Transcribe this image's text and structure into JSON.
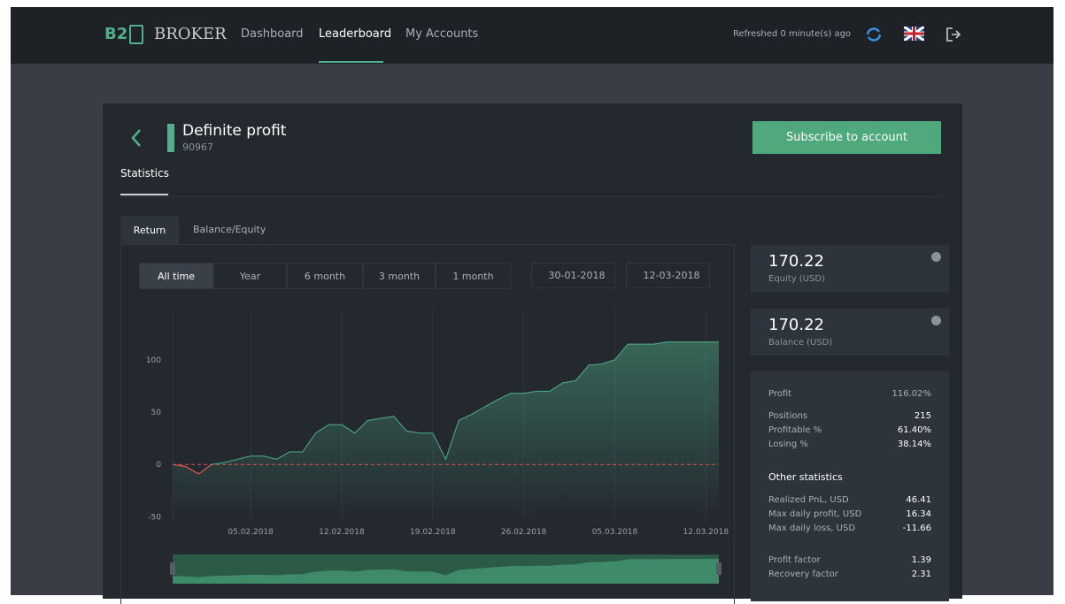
{
  "header": {
    "logo": "B2",
    "brand": "BROKER",
    "nav": [
      "Dashboard",
      "Leaderboard",
      "My Accounts"
    ],
    "refreshed": "Refreshed 0 minute(s) ago"
  },
  "account": {
    "name": "Definite profit",
    "id": "90967",
    "subscribe": "Subscribe to account",
    "tab": "Statistics",
    "subtabs": [
      "Return",
      "Balance/Equity"
    ],
    "ranges": [
      "All time",
      "Year",
      "6 month",
      "3 month",
      "1 month"
    ],
    "date_from": "30-01-2018",
    "date_to": "12-03-2018"
  },
  "cards": [
    {
      "value": "170.22",
      "label": "Equity (USD)"
    },
    {
      "value": "170.22",
      "label": "Balance (USD)"
    }
  ],
  "stats": {
    "groups": [
      {
        "rows": [
          [
            "Profit",
            "116.02%"
          ]
        ]
      },
      {
        "rows": [
          [
            "Positions",
            "215"
          ],
          [
            "Profitable %",
            "61.40%"
          ],
          [
            "Losing %",
            "38.14%"
          ]
        ]
      },
      {
        "title": "Other statistics",
        "rows": [
          [
            "Realized PnL, USD",
            "46.41"
          ],
          [
            "Max daily profit, USD",
            "16.34"
          ],
          [
            "Max daily loss, USD",
            "-11.66"
          ]
        ]
      },
      {
        "rows": [
          [
            "Profit factor",
            "1.39"
          ],
          [
            "Recovery factor",
            "2.31"
          ]
        ]
      }
    ]
  },
  "chart_data": {
    "type": "line",
    "color": "#4fb08a",
    "negative_color": "#d9534f",
    "zero_line": true,
    "grid": true,
    "x": [
      "30.01.2018",
      "31.01.2018",
      "01.02.2018",
      "02.02.2018",
      "03.02.2018",
      "04.02.2018",
      "05.02.2018",
      "06.02.2018",
      "07.02.2018",
      "08.02.2018",
      "09.02.2018",
      "10.02.2018",
      "11.02.2018",
      "12.02.2018",
      "13.02.2018",
      "14.02.2018",
      "15.02.2018",
      "16.02.2018",
      "17.02.2018",
      "18.02.2018",
      "19.02.2018",
      "20.02.2018",
      "21.02.2018",
      "22.02.2018",
      "23.02.2018",
      "24.02.2018",
      "25.02.2018",
      "26.02.2018",
      "27.02.2018",
      "28.02.2018",
      "01.03.2018",
      "02.03.2018",
      "03.03.2018",
      "04.03.2018",
      "05.03.2018",
      "06.03.2018",
      "07.03.2018",
      "08.03.2018",
      "09.03.2018",
      "10.03.2018",
      "11.03.2018",
      "12.03.2018",
      "13.03.2018"
    ],
    "values": [
      0,
      -2,
      -9,
      0,
      2,
      5,
      8,
      8,
      5,
      12,
      12,
      30,
      38,
      38,
      30,
      42,
      44,
      46,
      32,
      30,
      30,
      5,
      42,
      48,
      55,
      62,
      68,
      68,
      70,
      70,
      78,
      80,
      95,
      96,
      100,
      115,
      115,
      115,
      117,
      117,
      117,
      117,
      117
    ],
    "xlim": [
      "30.01.2018",
      "13.03.2018"
    ],
    "xticks": [
      "05.02.2018",
      "12.02.2018",
      "19.02.2018",
      "26.02.2018",
      "05.03.2018",
      "12.03.2018"
    ],
    "ylim": [
      -53,
      148
    ],
    "yticks": [
      -50,
      0,
      50,
      100
    ]
  }
}
